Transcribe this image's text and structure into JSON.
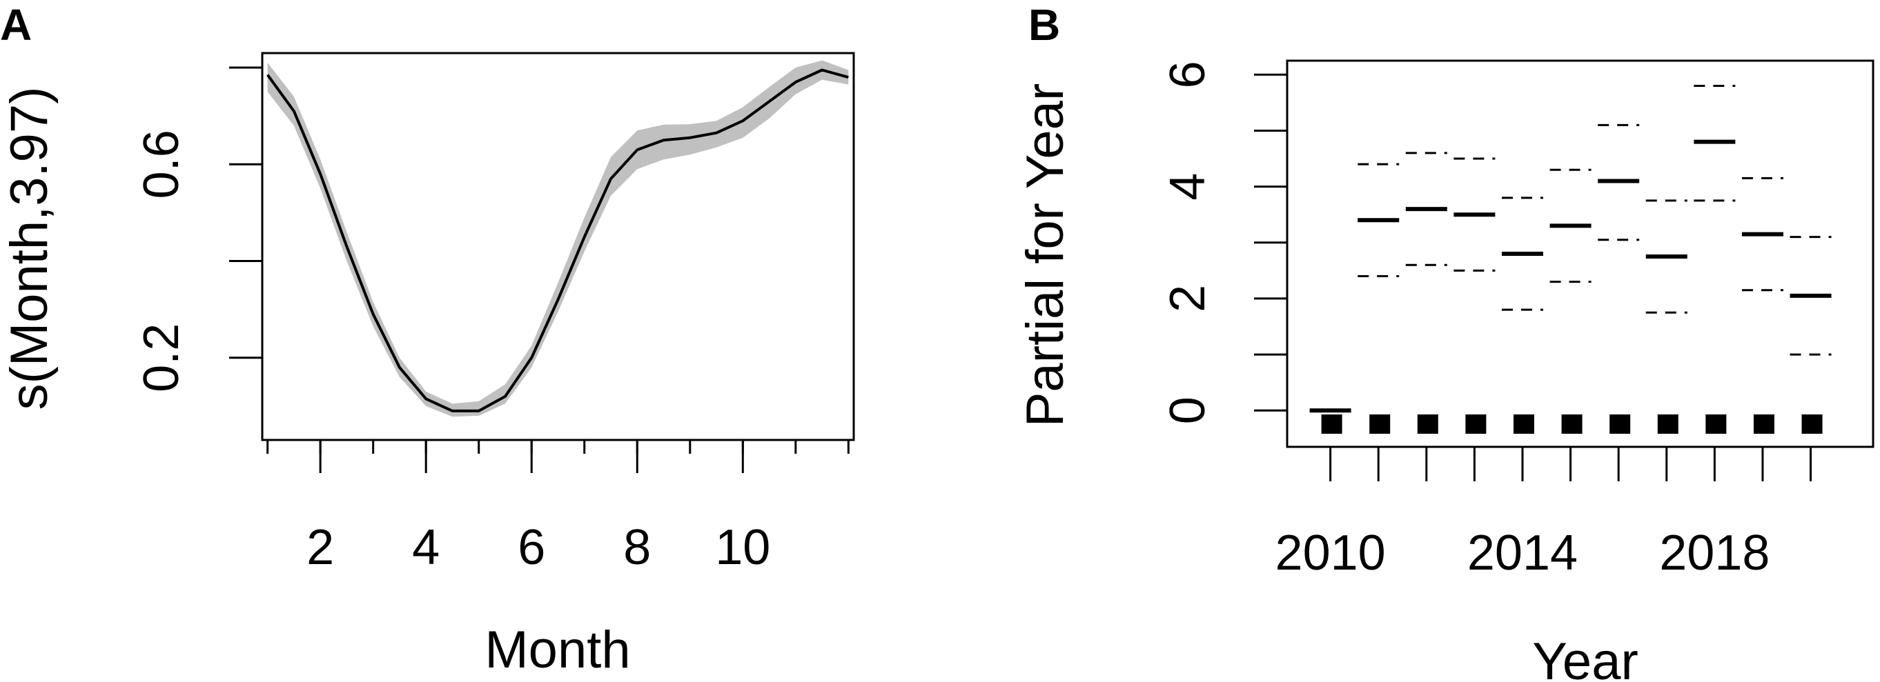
{
  "chart_data": [
    {
      "panel": "A",
      "type": "line",
      "xlabel": "Month",
      "ylabel": "s(Month,3.97)",
      "xlim": [
        0.9,
        12.1
      ],
      "ylim": [
        0.03,
        0.83
      ],
      "x_ticks": [
        1,
        2,
        3,
        4,
        5,
        6,
        7,
        8,
        9,
        10,
        11,
        12
      ],
      "x_tick_labels": [
        {
          "value": 2,
          "label": "2"
        },
        {
          "value": 4,
          "label": "4"
        },
        {
          "value": 6,
          "label": "6"
        },
        {
          "value": 8,
          "label": "8"
        },
        {
          "value": 10,
          "label": "10"
        }
      ],
      "y_ticks": [
        0.2,
        0.4,
        0.6,
        0.8
      ],
      "y_tick_labels": [
        {
          "value": 0.2,
          "label": "0.2"
        },
        {
          "value": 0.6,
          "label": "0.6"
        }
      ],
      "grid": false,
      "series": [
        {
          "x": [
            1,
            1.5,
            2,
            2.5,
            3,
            3.5,
            4,
            4.5,
            5,
            5.5,
            6,
            6.5,
            7,
            7.5,
            8,
            8.5,
            9,
            9.5,
            10,
            10.5,
            11,
            11.5,
            12
          ],
          "y": [
            0.785,
            0.71,
            0.58,
            0.43,
            0.29,
            0.18,
            0.115,
            0.09,
            0.09,
            0.12,
            0.2,
            0.32,
            0.45,
            0.57,
            0.63,
            0.65,
            0.655,
            0.665,
            0.69,
            0.73,
            0.77,
            0.795,
            0.78
          ],
          "lower": [
            0.75,
            0.68,
            0.55,
            0.4,
            0.265,
            0.16,
            0.1,
            0.078,
            0.08,
            0.105,
            0.18,
            0.295,
            0.42,
            0.535,
            0.59,
            0.61,
            0.62,
            0.635,
            0.655,
            0.695,
            0.745,
            0.775,
            0.765
          ],
          "upper": [
            0.81,
            0.74,
            0.61,
            0.46,
            0.315,
            0.2,
            0.13,
            0.105,
            0.11,
            0.145,
            0.225,
            0.355,
            0.49,
            0.615,
            0.67,
            0.682,
            0.683,
            0.69,
            0.718,
            0.76,
            0.8,
            0.815,
            0.795
          ]
        }
      ]
    },
    {
      "panel": "B",
      "type": "scatter",
      "xlabel": "Year",
      "ylabel": "Partial for Year",
      "xlim": [
        2009.1,
        2021.3
      ],
      "ylim": [
        -0.65,
        6.25
      ],
      "x_ticks": [
        2010,
        2011,
        2012,
        2013,
        2014,
        2015,
        2016,
        2017,
        2018,
        2019,
        2020
      ],
      "x_tick_labels": [
        {
          "value": 2010,
          "label": "2010"
        },
        {
          "value": 2014,
          "label": "2014"
        },
        {
          "value": 2018,
          "label": "2018"
        }
      ],
      "y_ticks": [
        0,
        1,
        2,
        3,
        4,
        5,
        6
      ],
      "y_tick_labels": [
        {
          "value": 0,
          "label": "0"
        },
        {
          "value": 2,
          "label": "2"
        },
        {
          "value": 4,
          "label": "4"
        },
        {
          "value": 6,
          "label": "6"
        }
      ],
      "grid": false,
      "estimates": [
        {
          "year": 2010,
          "value": 0.0
        },
        {
          "year": 2011,
          "value": 3.4,
          "lower": 2.4,
          "upper": 4.4
        },
        {
          "year": 2012,
          "value": 3.6,
          "lower": 2.6,
          "upper": 4.6
        },
        {
          "year": 2013,
          "value": 3.5,
          "lower": 2.5,
          "upper": 4.5
        },
        {
          "year": 2014,
          "value": 2.8,
          "lower": 1.8,
          "upper": 3.8
        },
        {
          "year": 2015,
          "value": 3.3,
          "lower": 2.3,
          "upper": 4.3
        },
        {
          "year": 2016,
          "value": 4.1,
          "lower": 3.05,
          "upper": 5.1
        },
        {
          "year": 2017,
          "value": 2.75,
          "lower": 1.75,
          "upper": 3.75
        },
        {
          "year": 2018,
          "value": 4.8,
          "lower": 3.75,
          "upper": 5.8
        },
        {
          "year": 2019,
          "value": 3.15,
          "lower": 2.15,
          "upper": 4.15
        },
        {
          "year": 2020,
          "value": 2.05,
          "lower": 1.0,
          "upper": 3.1
        }
      ],
      "rug_years": [
        2010,
        2011,
        2012,
        2013,
        2014,
        2015,
        2016,
        2017,
        2018,
        2019,
        2020
      ]
    }
  ],
  "labels": {
    "panel_a": "A",
    "panel_b": "B"
  }
}
